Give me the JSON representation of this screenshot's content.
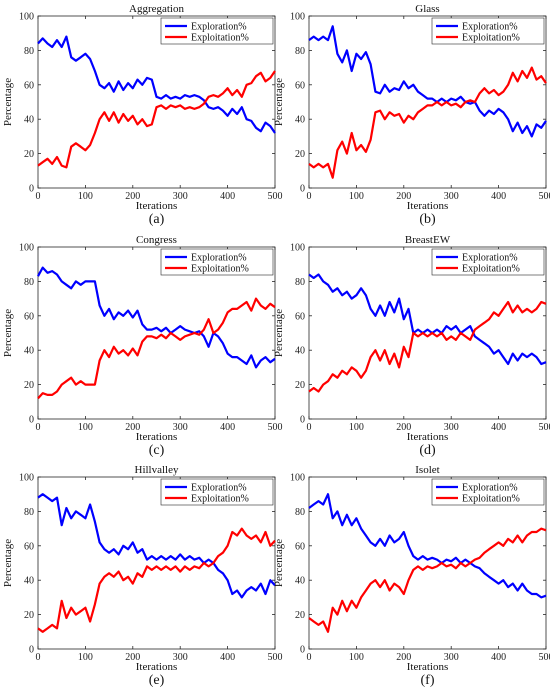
{
  "chart_data": [
    {
      "type": "line",
      "title": "Aggregation",
      "panel_label": "(a)",
      "xlabel": "Iterations",
      "ylabel": "Percentage",
      "xlim": [
        0,
        500
      ],
      "ylim": [
        0,
        100
      ],
      "xticks": [
        0,
        100,
        200,
        300,
        400,
        500
      ],
      "yticks": [
        0,
        20,
        40,
        60,
        80,
        100
      ],
      "grid": false,
      "legend_position": "top-right",
      "x": [
        0,
        10,
        20,
        30,
        40,
        50,
        60,
        70,
        80,
        90,
        100,
        110,
        120,
        130,
        140,
        150,
        160,
        170,
        180,
        190,
        200,
        210,
        220,
        230,
        240,
        250,
        260,
        270,
        280,
        290,
        300,
        310,
        320,
        330,
        340,
        350,
        360,
        370,
        380,
        390,
        400,
        410,
        420,
        430,
        440,
        450,
        460,
        470,
        480,
        490,
        500
      ],
      "series": [
        {
          "name": "Exploration%",
          "color": "#0000ff",
          "values": [
            84,
            87,
            84,
            82,
            86,
            82,
            88,
            76,
            74,
            76,
            78,
            75,
            68,
            60,
            58,
            61,
            56,
            62,
            57,
            61,
            58,
            63,
            60,
            64,
            63,
            53,
            52,
            54,
            52,
            53,
            52,
            54,
            53,
            54,
            53,
            51,
            47,
            46,
            47,
            45,
            42,
            46,
            43,
            47,
            40,
            39,
            35,
            33,
            38,
            36,
            32
          ]
        },
        {
          "name": "Exploitation%",
          "color": "#ff0000",
          "values": [
            13,
            15,
            17,
            14,
            18,
            13,
            12,
            24,
            26,
            24,
            22,
            25,
            32,
            40,
            44,
            39,
            44,
            38,
            43,
            39,
            42,
            37,
            40,
            36,
            37,
            47,
            48,
            46,
            48,
            47,
            48,
            46,
            47,
            46,
            47,
            49,
            53,
            54,
            53,
            55,
            58,
            54,
            57,
            53,
            60,
            61,
            65,
            67,
            62,
            64,
            68
          ]
        }
      ]
    },
    {
      "type": "line",
      "title": "Glass",
      "panel_label": "(b)",
      "xlabel": "Iterations",
      "ylabel": "Percentage",
      "xlim": [
        0,
        500
      ],
      "ylim": [
        0,
        100
      ],
      "xticks": [
        0,
        100,
        200,
        300,
        400,
        500
      ],
      "yticks": [
        0,
        20,
        40,
        60,
        80,
        100
      ],
      "grid": false,
      "legend_position": "top-right",
      "x": [
        0,
        10,
        20,
        30,
        40,
        50,
        60,
        70,
        80,
        90,
        100,
        110,
        120,
        130,
        140,
        150,
        160,
        170,
        180,
        190,
        200,
        210,
        220,
        230,
        240,
        250,
        260,
        270,
        280,
        290,
        300,
        310,
        320,
        330,
        340,
        350,
        360,
        370,
        380,
        390,
        400,
        410,
        420,
        430,
        440,
        450,
        460,
        470,
        480,
        490,
        500
      ],
      "series": [
        {
          "name": "Exploration%",
          "color": "#0000ff",
          "values": [
            86,
            88,
            86,
            88,
            86,
            94,
            78,
            73,
            80,
            68,
            78,
            75,
            79,
            72,
            56,
            55,
            60,
            56,
            58,
            57,
            62,
            58,
            60,
            56,
            54,
            52,
            52,
            50,
            52,
            50,
            52,
            51,
            53,
            50,
            49,
            50,
            45,
            42,
            45,
            43,
            46,
            44,
            40,
            33,
            38,
            32,
            36,
            30,
            37,
            35,
            39
          ]
        },
        {
          "name": "Exploitation%",
          "color": "#ff0000",
          "values": [
            14,
            12,
            14,
            12,
            14,
            6,
            22,
            27,
            20,
            32,
            22,
            25,
            21,
            28,
            44,
            45,
            40,
            44,
            42,
            43,
            38,
            42,
            40,
            44,
            46,
            48,
            48,
            50,
            48,
            50,
            48,
            49,
            47,
            50,
            51,
            50,
            55,
            58,
            55,
            57,
            54,
            56,
            60,
            67,
            62,
            68,
            64,
            70,
            63,
            65,
            61
          ]
        }
      ]
    },
    {
      "type": "line",
      "title": "Congress",
      "panel_label": "(c)",
      "xlabel": "Iterations",
      "ylabel": "Percentage",
      "xlim": [
        0,
        500
      ],
      "ylim": [
        0,
        100
      ],
      "xticks": [
        0,
        100,
        200,
        300,
        400,
        500
      ],
      "yticks": [
        0,
        20,
        40,
        60,
        80,
        100
      ],
      "grid": false,
      "legend_position": "top-right",
      "x": [
        0,
        10,
        20,
        30,
        40,
        50,
        60,
        70,
        80,
        90,
        100,
        110,
        120,
        130,
        140,
        150,
        160,
        170,
        180,
        190,
        200,
        210,
        220,
        230,
        240,
        250,
        260,
        270,
        280,
        290,
        300,
        310,
        320,
        330,
        340,
        350,
        360,
        370,
        380,
        390,
        400,
        410,
        420,
        430,
        440,
        450,
        460,
        470,
        480,
        490,
        500
      ],
      "series": [
        {
          "name": "Exploration%",
          "color": "#0000ff",
          "values": [
            83,
            88,
            85,
            86,
            84,
            80,
            78,
            76,
            80,
            78,
            80,
            80,
            80,
            66,
            60,
            64,
            58,
            62,
            60,
            63,
            59,
            63,
            55,
            52,
            52,
            53,
            51,
            53,
            50,
            52,
            54,
            52,
            51,
            50,
            51,
            48,
            42,
            50,
            48,
            44,
            38,
            36,
            36,
            34,
            32,
            37,
            30,
            34,
            36,
            33,
            35
          ]
        },
        {
          "name": "Exploitation%",
          "color": "#ff0000",
          "values": [
            12,
            15,
            14,
            14,
            16,
            20,
            22,
            24,
            20,
            22,
            20,
            20,
            20,
            34,
            40,
            36,
            42,
            38,
            40,
            37,
            41,
            37,
            45,
            48,
            48,
            47,
            49,
            47,
            50,
            48,
            46,
            48,
            49,
            50,
            49,
            52,
            58,
            50,
            52,
            56,
            62,
            64,
            64,
            66,
            68,
            63,
            70,
            66,
            64,
            67,
            65
          ]
        }
      ]
    },
    {
      "type": "line",
      "title": "BreastEW",
      "panel_label": "(d)",
      "xlabel": "Iterations",
      "ylabel": "Percentage",
      "xlim": [
        0,
        500
      ],
      "ylim": [
        0,
        100
      ],
      "xticks": [
        0,
        100,
        200,
        300,
        400,
        500
      ],
      "yticks": [
        0,
        20,
        40,
        60,
        80,
        100
      ],
      "grid": false,
      "legend_position": "top-right",
      "x": [
        0,
        10,
        20,
        30,
        40,
        50,
        60,
        70,
        80,
        90,
        100,
        110,
        120,
        130,
        140,
        150,
        160,
        170,
        180,
        190,
        200,
        210,
        220,
        230,
        240,
        250,
        260,
        270,
        280,
        290,
        300,
        310,
        320,
        330,
        340,
        350,
        360,
        370,
        380,
        390,
        400,
        410,
        420,
        430,
        440,
        450,
        460,
        470,
        480,
        490,
        500
      ],
      "series": [
        {
          "name": "Exploration%",
          "color": "#0000ff",
          "values": [
            84,
            82,
            84,
            80,
            78,
            74,
            76,
            72,
            74,
            70,
            72,
            76,
            72,
            64,
            60,
            66,
            60,
            68,
            62,
            70,
            58,
            64,
            50,
            52,
            50,
            52,
            50,
            52,
            50,
            54,
            52,
            54,
            50,
            52,
            54,
            48,
            46,
            44,
            42,
            38,
            40,
            36,
            32,
            38,
            34,
            38,
            36,
            38,
            36,
            32,
            33
          ]
        },
        {
          "name": "Exploitation%",
          "color": "#ff0000",
          "values": [
            16,
            18,
            16,
            20,
            22,
            26,
            24,
            28,
            26,
            30,
            28,
            24,
            28,
            36,
            40,
            34,
            40,
            32,
            38,
            30,
            42,
            36,
            50,
            48,
            50,
            48,
            50,
            48,
            50,
            46,
            48,
            46,
            50,
            48,
            46,
            52,
            54,
            56,
            58,
            62,
            60,
            64,
            68,
            62,
            66,
            62,
            64,
            62,
            64,
            68,
            67
          ]
        }
      ]
    },
    {
      "type": "line",
      "title": "Hillvalley",
      "panel_label": "(e)",
      "xlabel": "Iterations",
      "ylabel": "Percentage",
      "xlim": [
        0,
        500
      ],
      "ylim": [
        0,
        100
      ],
      "xticks": [
        0,
        100,
        200,
        300,
        400,
        500
      ],
      "yticks": [
        0,
        20,
        40,
        60,
        80,
        100
      ],
      "grid": false,
      "legend_position": "top-right",
      "x": [
        0,
        10,
        20,
        30,
        40,
        50,
        60,
        70,
        80,
        90,
        100,
        110,
        120,
        130,
        140,
        150,
        160,
        170,
        180,
        190,
        200,
        210,
        220,
        230,
        240,
        250,
        260,
        270,
        280,
        290,
        300,
        310,
        320,
        330,
        340,
        350,
        360,
        370,
        380,
        390,
        400,
        410,
        420,
        430,
        440,
        450,
        460,
        470,
        480,
        490,
        500
      ],
      "series": [
        {
          "name": "Exploration%",
          "color": "#0000ff",
          "values": [
            88,
            90,
            88,
            86,
            88,
            72,
            82,
            76,
            80,
            78,
            76,
            84,
            74,
            62,
            58,
            56,
            58,
            55,
            60,
            58,
            62,
            56,
            58,
            52,
            54,
            52,
            54,
            52,
            54,
            52,
            55,
            52,
            54,
            52,
            53,
            50,
            52,
            50,
            46,
            44,
            40,
            32,
            34,
            30,
            34,
            36,
            34,
            38,
            32,
            40,
            37
          ]
        },
        {
          "name": "Exploitation%",
          "color": "#ff0000",
          "values": [
            12,
            10,
            12,
            14,
            12,
            28,
            18,
            24,
            20,
            22,
            24,
            16,
            26,
            38,
            42,
            44,
            42,
            45,
            40,
            42,
            38,
            44,
            42,
            48,
            46,
            48,
            46,
            48,
            46,
            48,
            45,
            48,
            46,
            48,
            47,
            50,
            48,
            50,
            54,
            56,
            60,
            68,
            66,
            70,
            66,
            64,
            66,
            62,
            68,
            60,
            63
          ]
        }
      ]
    },
    {
      "type": "line",
      "title": "Isolet",
      "panel_label": "(f)",
      "xlabel": "Iterations",
      "ylabel": "Percentage",
      "xlim": [
        0,
        500
      ],
      "ylim": [
        0,
        100
      ],
      "xticks": [
        0,
        100,
        200,
        300,
        400,
        500
      ],
      "yticks": [
        0,
        20,
        40,
        60,
        80,
        100
      ],
      "grid": false,
      "legend_position": "top-right",
      "x": [
        0,
        10,
        20,
        30,
        40,
        50,
        60,
        70,
        80,
        90,
        100,
        110,
        120,
        130,
        140,
        150,
        160,
        170,
        180,
        190,
        200,
        210,
        220,
        230,
        240,
        250,
        260,
        270,
        280,
        290,
        300,
        310,
        320,
        330,
        340,
        350,
        360,
        370,
        380,
        390,
        400,
        410,
        420,
        430,
        440,
        450,
        460,
        470,
        480,
        490,
        500
      ],
      "series": [
        {
          "name": "Exploration%",
          "color": "#0000ff",
          "values": [
            82,
            84,
            86,
            84,
            90,
            76,
            80,
            72,
            78,
            72,
            76,
            70,
            66,
            62,
            60,
            64,
            60,
            66,
            62,
            64,
            68,
            60,
            54,
            52,
            54,
            52,
            53,
            52,
            50,
            52,
            51,
            53,
            50,
            52,
            50,
            48,
            47,
            44,
            42,
            40,
            38,
            40,
            36,
            38,
            34,
            38,
            34,
            32,
            32,
            30,
            31
          ]
        },
        {
          "name": "Exploitation%",
          "color": "#ff0000",
          "values": [
            18,
            16,
            14,
            16,
            10,
            24,
            20,
            28,
            22,
            28,
            24,
            30,
            34,
            38,
            40,
            36,
            40,
            34,
            38,
            36,
            32,
            40,
            46,
            48,
            46,
            48,
            47,
            48,
            50,
            48,
            49,
            47,
            50,
            48,
            50,
            52,
            53,
            56,
            58,
            60,
            62,
            60,
            64,
            62,
            66,
            62,
            66,
            68,
            68,
            70,
            69
          ]
        }
      ]
    }
  ]
}
